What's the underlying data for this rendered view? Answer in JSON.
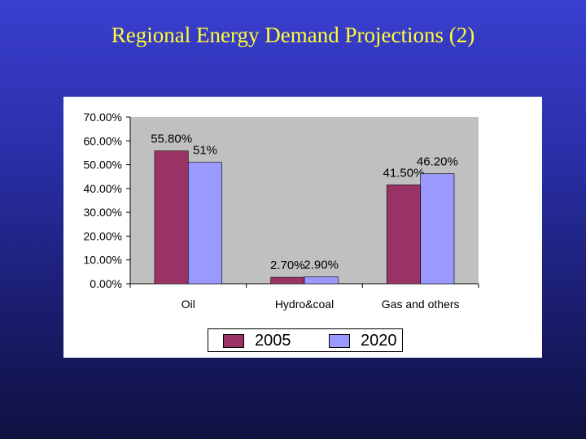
{
  "slide": {
    "title": "Regional Energy Demand Projections (2)"
  },
  "colors": {
    "series_2005": "#993366",
    "series_2020": "#9999ff",
    "plot_bg": "#c0c0c0"
  },
  "chart_data": {
    "type": "bar",
    "title": "",
    "xlabel": "",
    "ylabel": "",
    "ylim": [
      0,
      0.7
    ],
    "yticks": [
      "0.00%",
      "10.00%",
      "20.00%",
      "30.00%",
      "40.00%",
      "50.00%",
      "60.00%",
      "70.00%"
    ],
    "categories": [
      "Oil",
      "Hydro&coal",
      "Gas and others"
    ],
    "series": [
      {
        "name": "2005",
        "values": [
          0.558,
          0.027,
          0.415
        ],
        "labels": [
          "55.80%",
          "2.70%",
          "41.50%"
        ]
      },
      {
        "name": "2020",
        "values": [
          0.51,
          0.029,
          0.462
        ],
        "labels": [
          "51%",
          "2.90%",
          "46.20%"
        ]
      }
    ],
    "grid": false,
    "legend": "bottom"
  }
}
